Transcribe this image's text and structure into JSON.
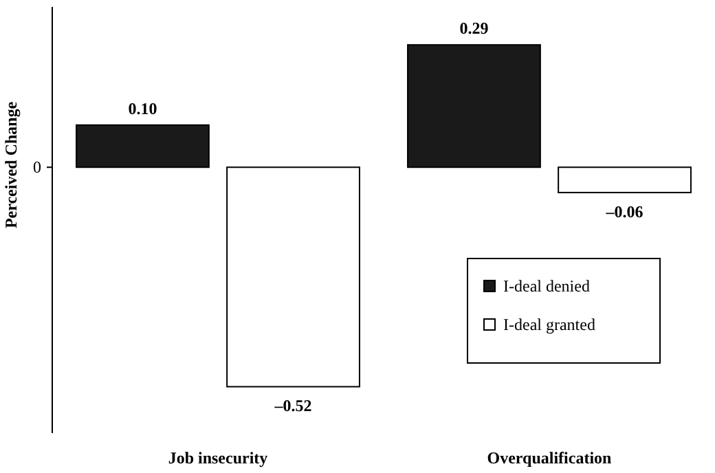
{
  "chart_data": {
    "type": "bar",
    "ylabel": "Perceived Change",
    "categories": [
      "Job insecurity",
      "Overqualification"
    ],
    "series": [
      {
        "name": "I-deal denied",
        "color": "#1a1a1a",
        "values": [
          0.1,
          0.29
        ],
        "value_labels": [
          "0.10",
          "0.29"
        ]
      },
      {
        "name": "I-deal granted",
        "color": "#ffffff",
        "values": [
          -0.52,
          -0.06
        ],
        "value_labels": [
          "–0.52",
          "–0.06"
        ]
      }
    ],
    "ylim": [
      -0.63,
      0.38
    ],
    "annotations": [
      "0"
    ],
    "legend": "bottom right",
    "data_labels": true
  }
}
